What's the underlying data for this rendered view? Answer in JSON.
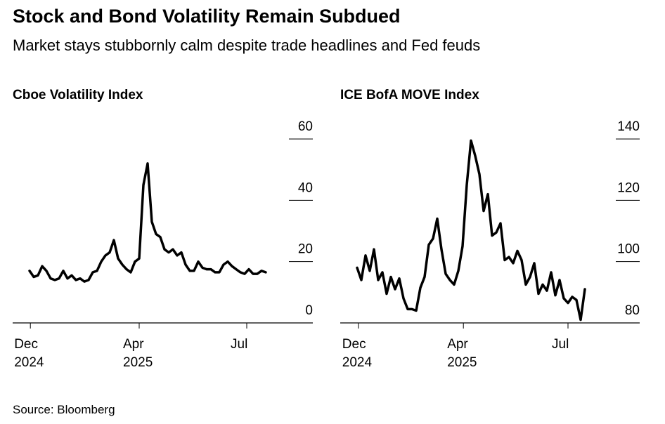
{
  "title": "Stock and Bond Volatility Remain Subdued",
  "subtitle": "Market stays stubbornly calm despite trade headlines and Fed feuds",
  "source": "Source: Bloomberg",
  "chart_data": [
    {
      "type": "line",
      "title": "Cboe Volatility Index",
      "color": "#000000",
      "values": [
        17,
        15,
        15.5,
        18.5,
        17,
        14.5,
        14,
        14.5,
        17,
        14.5,
        15.5,
        14,
        14.5,
        13.5,
        14,
        16.5,
        17,
        20,
        22,
        23,
        27,
        21,
        19,
        17.5,
        16.5,
        20,
        21,
        45,
        52,
        33,
        29,
        28,
        24,
        23,
        24,
        22,
        23,
        19,
        17,
        17,
        20,
        18,
        17.5,
        17.5,
        16.5,
        16.5,
        19,
        20,
        18.5,
        17.5,
        16.5,
        16,
        17.5,
        16,
        16,
        17,
        16.5
      ],
      "xlim": [
        0,
        56
      ],
      "xticks": [
        {
          "value": 0.2,
          "label": "Dec\n2024"
        },
        {
          "value": 26,
          "label": "Apr\n2025"
        },
        {
          "value": 51.5,
          "label": "Jul"
        }
      ],
      "ylim": [
        0,
        60
      ],
      "yticks": [
        0,
        20,
        40,
        60
      ]
    },
    {
      "type": "line",
      "title": "ICE BofA MOVE Index",
      "color": "#000000",
      "values": [
        98,
        94,
        102,
        97,
        104,
        94,
        96.5,
        89.5,
        95,
        91,
        94.5,
        88,
        84.5,
        84.5,
        84,
        91.5,
        95,
        105.5,
        107.5,
        114,
        104,
        96,
        94,
        92.5,
        97,
        105,
        125,
        139.5,
        134.5,
        128.5,
        116.5,
        122,
        108.5,
        109.5,
        112.5,
        100.5,
        101.5,
        99.5,
        103.5,
        100.5,
        92.5,
        95,
        99.5,
        89.5,
        92.5,
        90.5,
        96.5,
        89,
        94,
        88,
        86.5,
        88.5,
        87.5,
        81,
        91
      ],
      "xlim": [
        0,
        54
      ],
      "xticks": [
        {
          "value": 0.3,
          "label": "Dec\n2024"
        },
        {
          "value": 25.2,
          "label": "Apr\n2025"
        },
        {
          "value": 50,
          "label": "Jul"
        }
      ],
      "ylim": [
        80,
        140
      ],
      "yticks": [
        80,
        100,
        120,
        140
      ]
    }
  ]
}
